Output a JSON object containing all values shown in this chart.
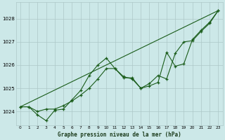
{
  "title": "Graphe pression niveau de la mer (hPa)",
  "bg_color": "#cce8e8",
  "grid_color": "#adc8c8",
  "line_color": "#1a5c1a",
  "xlim": [
    -0.5,
    23.5
  ],
  "ylim": [
    1023.4,
    1028.7
  ],
  "yticks": [
    1024,
    1025,
    1026,
    1027,
    1028
  ],
  "xticks": [
    0,
    1,
    2,
    3,
    4,
    5,
    6,
    7,
    8,
    9,
    10,
    11,
    12,
    13,
    14,
    15,
    16,
    17,
    18,
    19,
    20,
    21,
    22,
    23
  ],
  "series1_x": [
    0,
    1,
    2,
    3,
    4,
    5,
    6,
    7,
    8,
    9,
    10,
    11,
    12,
    13,
    14,
    15,
    16,
    17,
    18,
    19,
    20,
    21,
    22,
    23
  ],
  "series1_y": [
    1024.2,
    1024.2,
    1023.85,
    1023.6,
    1024.05,
    1024.1,
    1024.5,
    1024.9,
    1025.55,
    1026.0,
    1026.3,
    1025.85,
    1025.45,
    1025.45,
    1025.0,
    1025.1,
    1025.25,
    1026.55,
    1025.95,
    1026.05,
    1027.1,
    1027.5,
    1027.85,
    1028.35
  ],
  "series2_x": [
    0,
    1,
    2,
    3,
    4,
    5,
    6,
    7,
    8,
    9,
    10,
    11,
    12,
    13,
    14,
    15,
    16,
    17,
    18,
    19,
    20,
    21,
    22,
    23
  ],
  "series2_y": [
    1024.2,
    1024.2,
    1024.0,
    1024.1,
    1024.1,
    1024.25,
    1024.45,
    1024.7,
    1025.0,
    1025.4,
    1025.85,
    1025.85,
    1025.5,
    1025.4,
    1025.0,
    1025.2,
    1025.55,
    1025.4,
    1026.5,
    1027.0,
    1027.05,
    1027.45,
    1027.8,
    1028.35
  ],
  "series3_x": [
    0,
    23
  ],
  "series3_y": [
    1024.2,
    1028.35
  ]
}
